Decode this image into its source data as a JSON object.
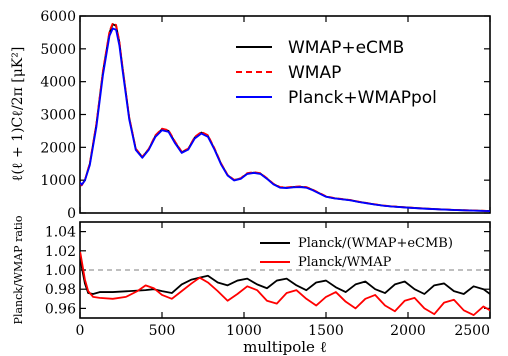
{
  "chart_data": [
    {
      "type": "line",
      "title": "",
      "xlabel": "",
      "ylabel": "ℓ(ℓ + 1)Cℓ/2π [μK²]",
      "xlim": [
        0,
        2500
      ],
      "ylim": [
        0,
        6000
      ],
      "x_ticks": [
        "0",
        "500",
        "1000",
        "1500",
        "2000",
        "2500"
      ],
      "y_ticks": [
        "0",
        "1000",
        "2000",
        "3000",
        "4000",
        "5000",
        "6000"
      ],
      "legend_position": "top-right",
      "grid": false,
      "series": [
        {
          "name": "WMAP+eCMB",
          "color": "#000000",
          "style": "solid",
          "x": [
            2,
            10,
            30,
            60,
            100,
            140,
            180,
            200,
            220,
            240,
            260,
            300,
            340,
            380,
            420,
            460,
            500,
            540,
            580,
            620,
            660,
            700,
            740,
            780,
            820,
            860,
            900,
            940,
            980,
            1020,
            1060,
            1100,
            1140,
            1180,
            1220,
            1260,
            1300,
            1340,
            1380,
            1420,
            1460,
            1500,
            1550,
            1600,
            1650,
            1700,
            1750,
            1800,
            1850,
            1900,
            2000,
            2100,
            2200,
            2300,
            2400,
            2500
          ],
          "y": [
            900,
            850,
            1000,
            1500,
            2700,
            4300,
            5500,
            5750,
            5700,
            5200,
            4400,
            2900,
            1950,
            1700,
            1950,
            2350,
            2550,
            2500,
            2150,
            1850,
            1950,
            2300,
            2450,
            2350,
            1950,
            1500,
            1150,
            1000,
            1050,
            1200,
            1230,
            1200,
            1050,
            880,
            780,
            770,
            790,
            800,
            780,
            700,
            600,
            500,
            450,
            420,
            390,
            340,
            300,
            260,
            225,
            200,
            165,
            135,
            110,
            90,
            75,
            60
          ]
        },
        {
          "name": "WMAP",
          "color": "#ff0000",
          "style": "dashed",
          "x": [
            2,
            10,
            30,
            60,
            100,
            140,
            180,
            200,
            220,
            240,
            260,
            300,
            340,
            380,
            420,
            460,
            500,
            540,
            580,
            620,
            660,
            700,
            740,
            780,
            820,
            860,
            900,
            940,
            980,
            1020,
            1060,
            1100,
            1140,
            1180,
            1220,
            1260,
            1300,
            1340,
            1380,
            1420,
            1460,
            1500,
            1550,
            1600,
            1650,
            1700,
            1750,
            1800,
            1850,
            1900,
            2000,
            2100,
            2200,
            2300,
            2400,
            2500
          ],
          "y": [
            880,
            840,
            1000,
            1520,
            2720,
            4330,
            5540,
            5780,
            5730,
            5230,
            4420,
            2920,
            1960,
            1710,
            1960,
            2370,
            2570,
            2520,
            2170,
            1870,
            1960,
            2320,
            2470,
            2370,
            1970,
            1515,
            1160,
            1010,
            1060,
            1215,
            1245,
            1215,
            1060,
            890,
            790,
            780,
            800,
            810,
            790,
            710,
            610,
            510,
            455,
            425,
            395,
            345,
            305,
            265,
            228,
            203,
            168,
            138,
            112,
            92,
            77,
            62
          ]
        },
        {
          "name": "Planck+WMAPpol",
          "color": "#0000ff",
          "style": "solid",
          "x": [
            2,
            10,
            30,
            60,
            100,
            140,
            180,
            200,
            220,
            240,
            260,
            300,
            340,
            380,
            420,
            460,
            500,
            540,
            580,
            620,
            660,
            700,
            740,
            780,
            820,
            860,
            900,
            940,
            980,
            1020,
            1060,
            1100,
            1140,
            1180,
            1220,
            1260,
            1300,
            1340,
            1380,
            1420,
            1460,
            1500,
            1550,
            1600,
            1650,
            1700,
            1750,
            1800,
            1850,
            1900,
            2000,
            2100,
            2200,
            2300,
            2400,
            2500
          ],
          "y": [
            920,
            860,
            990,
            1460,
            2620,
            4200,
            5400,
            5620,
            5580,
            5100,
            4320,
            2850,
            1920,
            1680,
            1930,
            2320,
            2520,
            2470,
            2120,
            1830,
            1930,
            2270,
            2420,
            2320,
            1930,
            1480,
            1140,
            990,
            1040,
            1190,
            1220,
            1190,
            1040,
            870,
            770,
            760,
            780,
            790,
            770,
            690,
            590,
            495,
            445,
            415,
            385,
            335,
            295,
            255,
            222,
            197,
            162,
            132,
            108,
            88,
            73,
            58
          ]
        }
      ]
    },
    {
      "type": "line",
      "title": "",
      "xlabel": "multipole ℓ",
      "ylabel": "Planck/WMAP ratio",
      "xlim": [
        0,
        2500
      ],
      "ylim": [
        0.95,
        1.05
      ],
      "x_ticks": [
        "0",
        "500",
        "1000",
        "1500",
        "2000",
        "2500"
      ],
      "y_ticks": [
        "0.96",
        "0.98",
        "1.00",
        "1.02",
        "1.04"
      ],
      "reference_line": 1.0,
      "legend_position": "top-right",
      "grid": false,
      "series": [
        {
          "name": "Planck/(WMAP+eCMB)",
          "color": "#000000",
          "style": "solid",
          "x": [
            2,
            15,
            30,
            50,
            80,
            120,
            200,
            300,
            400,
            450,
            500,
            560,
            620,
            680,
            730,
            780,
            840,
            900,
            960,
            1020,
            1080,
            1140,
            1200,
            1260,
            1320,
            1380,
            1440,
            1500,
            1560,
            1620,
            1680,
            1740,
            1800,
            1860,
            1920,
            1980,
            2040,
            2100,
            2160,
            2220,
            2280,
            2340,
            2400,
            2460,
            2500
          ],
          "y": [
            1.012,
            0.999,
            0.986,
            0.976,
            0.975,
            0.977,
            0.977,
            0.978,
            0.979,
            0.98,
            0.978,
            0.976,
            0.985,
            0.99,
            0.992,
            0.994,
            0.987,
            0.984,
            0.989,
            0.991,
            0.985,
            0.981,
            0.989,
            0.991,
            0.984,
            0.979,
            0.987,
            0.989,
            0.982,
            0.977,
            0.985,
            0.988,
            0.98,
            0.976,
            0.985,
            0.988,
            0.98,
            0.975,
            0.984,
            0.986,
            0.978,
            0.975,
            0.983,
            0.98,
            0.975
          ]
        },
        {
          "name": "Planck/WMAP",
          "color": "#ff0000",
          "style": "solid",
          "x": [
            2,
            15,
            30,
            50,
            80,
            120,
            200,
            280,
            350,
            400,
            450,
            500,
            560,
            620,
            680,
            730,
            780,
            840,
            900,
            960,
            1020,
            1080,
            1140,
            1200,
            1260,
            1320,
            1380,
            1440,
            1500,
            1560,
            1620,
            1680,
            1740,
            1800,
            1860,
            1920,
            1980,
            2040,
            2100,
            2160,
            2220,
            2280,
            2340,
            2400,
            2460,
            2500
          ],
          "y": [
            1.018,
            1.005,
            0.99,
            0.978,
            0.972,
            0.971,
            0.97,
            0.972,
            0.978,
            0.984,
            0.981,
            0.974,
            0.97,
            0.978,
            0.986,
            0.992,
            0.987,
            0.978,
            0.968,
            0.975,
            0.983,
            0.979,
            0.968,
            0.965,
            0.976,
            0.979,
            0.97,
            0.963,
            0.972,
            0.977,
            0.967,
            0.96,
            0.97,
            0.974,
            0.963,
            0.957,
            0.968,
            0.971,
            0.96,
            0.954,
            0.966,
            0.969,
            0.958,
            0.953,
            0.962,
            0.958
          ]
        }
      ]
    }
  ]
}
